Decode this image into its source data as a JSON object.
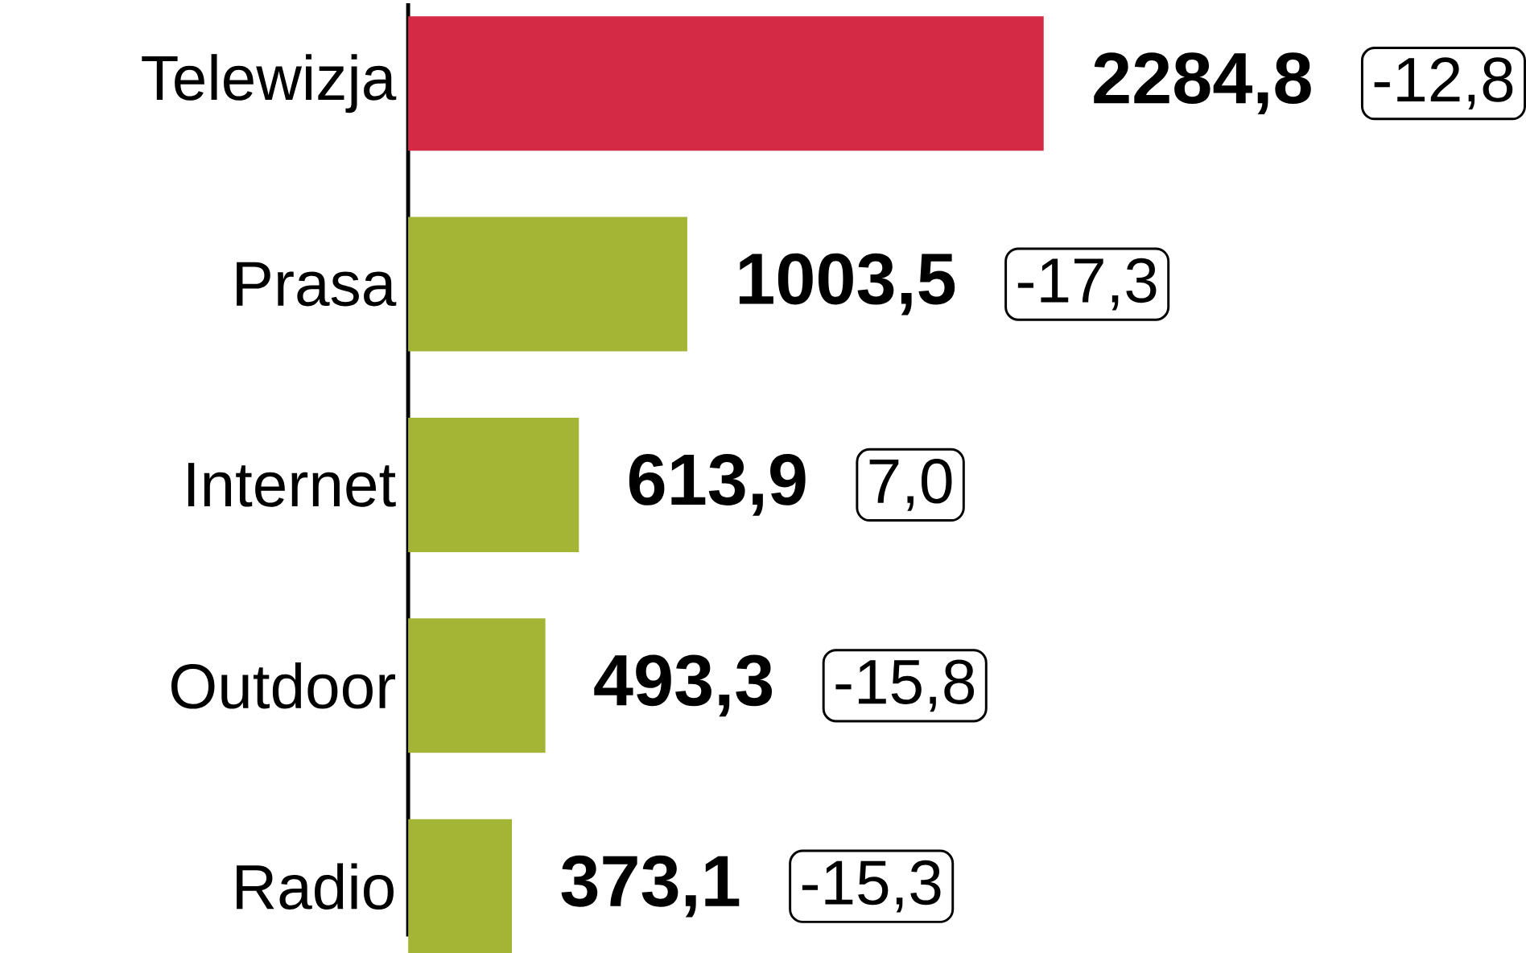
{
  "chart_data": {
    "type": "bar",
    "orientation": "horizontal",
    "categories": [
      "Telewizja",
      "Prasa",
      "Internet",
      "Outdoor",
      "Radio"
    ],
    "values": [
      2284.8,
      1003.5,
      613.9,
      493.3,
      373.1
    ],
    "colors": [
      "#d42a45",
      "#a4b536",
      "#a4b536",
      "#a4b536",
      "#a4b536"
    ],
    "value_labels": [
      "2284,8",
      "1003,5",
      "613,9",
      "493,3",
      "373,1"
    ],
    "annotations": [
      "-12,8",
      "-17,3",
      "7,0",
      "-15,8",
      "-15,3"
    ]
  }
}
